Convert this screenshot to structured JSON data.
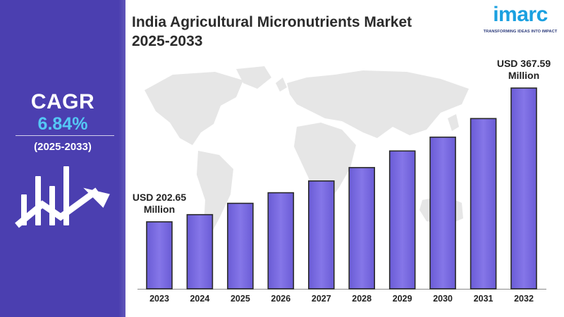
{
  "title": {
    "line1": "India Agricultural Micronutrients Market",
    "line2": "2025-2033"
  },
  "logo": {
    "wordmark": "imarc",
    "tagline": "TRANSFORMING IDEAS INTO IMPACT",
    "color": "#1aa0e0"
  },
  "cagr": {
    "label": "CAGR",
    "value": "6.84%",
    "period": "(2025-2033)"
  },
  "colors": {
    "panel": "#4b3fb0",
    "bar": "#7b6de0",
    "cagr_value": "#55c8f5",
    "map": "#e6e6e6"
  },
  "chart_data": {
    "type": "bar",
    "categories": [
      "2023",
      "2024",
      "2025",
      "2026",
      "2027",
      "2028",
      "2029",
      "2030",
      "2031",
      "2032"
    ],
    "values": [
      202.65,
      211.5,
      225.5,
      238.5,
      253.0,
      269.5,
      290.0,
      307.0,
      330.0,
      367.59
    ],
    "annotations": [
      {
        "category": "2023",
        "line1": "USD 202.65",
        "line2": "Million"
      },
      {
        "category": "2032",
        "line1": "USD 367.59",
        "line2": "Million"
      }
    ],
    "ylim": [
      120,
      385
    ],
    "grid": false,
    "legend": "none"
  }
}
